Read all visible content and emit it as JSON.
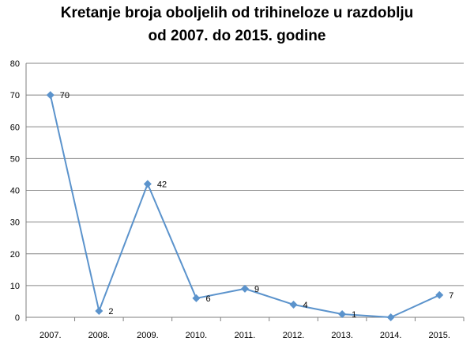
{
  "chart_data": {
    "type": "line",
    "title_lines": [
      "Kretanje broja oboljelih od trihineloze u razdoblju",
      "od 2007. do 2015. godine"
    ],
    "categories": [
      "2007.",
      "2008.",
      "2009.",
      "2010.",
      "2011.",
      "2012.",
      "2013.",
      "2014.",
      "2015."
    ],
    "series": [
      {
        "values": [
          70,
          2,
          42,
          6,
          9,
          4,
          1,
          0,
          7
        ],
        "color": "#5b93cc"
      }
    ],
    "data_labels": [
      "70",
      "2",
      "42",
      "6",
      "9",
      "4",
      "1",
      "",
      "7"
    ],
    "ylim": [
      0,
      80
    ],
    "yticks": [
      "0",
      "10",
      "20",
      "30",
      "40",
      "50",
      "60",
      "70",
      "80"
    ],
    "grid": true,
    "legend": "none",
    "xlabel": "",
    "ylabel": ""
  }
}
